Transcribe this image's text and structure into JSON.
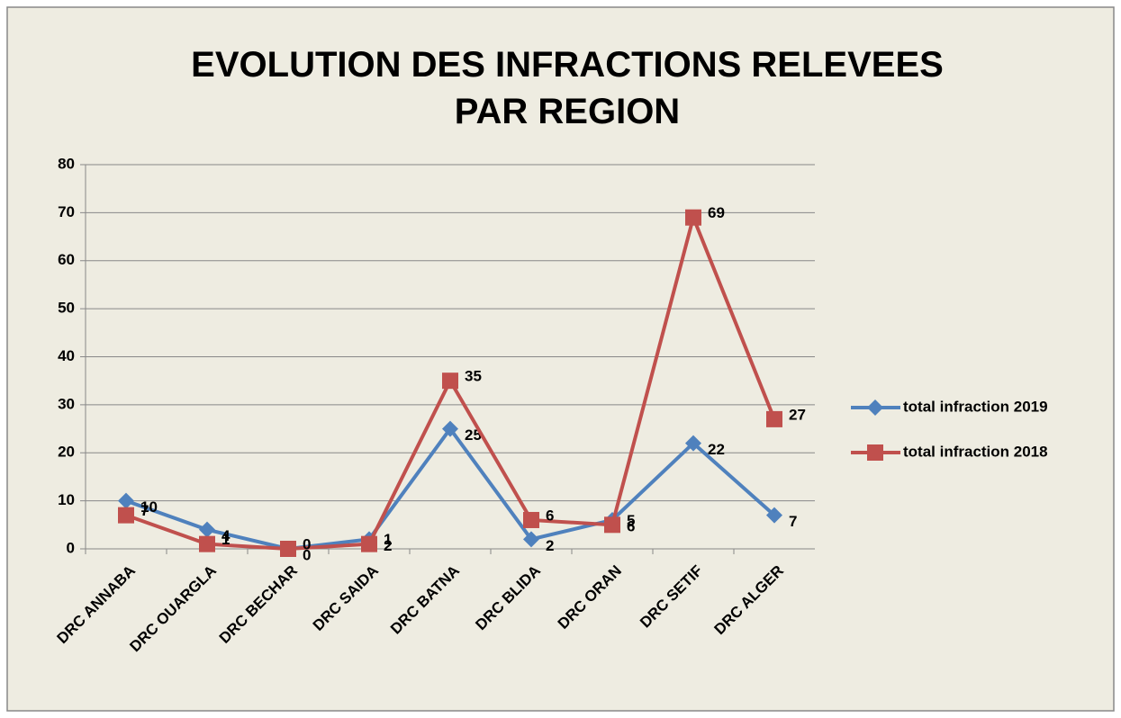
{
  "chart_data": {
    "type": "line",
    "title": "EVOLUTION DES INFRACTIONS  RELEVEES PAR REGION",
    "categories": [
      "DRC ANNABA",
      "DRC OUARGLA",
      "DRC BECHAR",
      "DRC SAIDA",
      "DRC BATNA",
      "DRC BLIDA",
      "DRC ORAN",
      "DRC SETIF",
      "DRC ALGER"
    ],
    "series": [
      {
        "name": "total infraction 2019",
        "color": "#4f81bd",
        "marker": "diamond",
        "values": [
          10,
          4,
          0,
          2,
          25,
          2,
          6,
          22,
          7
        ]
      },
      {
        "name": "total infraction 2018",
        "color": "#c0504d",
        "marker": "square",
        "values": [
          7,
          1,
          0,
          1,
          35,
          6,
          5,
          69,
          27
        ]
      }
    ],
    "ylim": [
      0,
      80
    ],
    "yticks": [
      0,
      10,
      20,
      30,
      40,
      50,
      60,
      70,
      80
    ],
    "grid": true,
    "legend": "right"
  }
}
